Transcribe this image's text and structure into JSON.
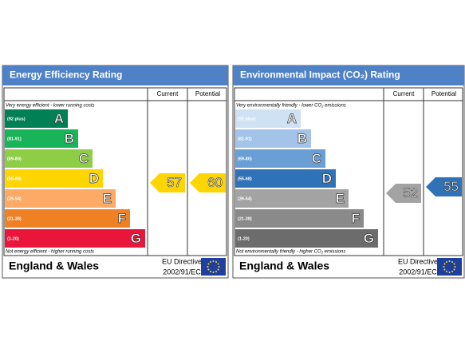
{
  "panels": [
    {
      "title": "Energy Efficiency Rating",
      "columns": [
        "Current",
        "Potential"
      ],
      "top_note": "Very energy efficient - lower running costs",
      "bottom_note": "Not energy efficient - higher running costs",
      "bands": [
        {
          "range": "(92 plus)",
          "letter": "A",
          "color": "#008054"
        },
        {
          "range": "(81-91)",
          "letter": "B",
          "color": "#19b459"
        },
        {
          "range": "(69-80)",
          "letter": "C",
          "color": "#8dce46"
        },
        {
          "range": "(55-68)",
          "letter": "D",
          "color": "#ffd500"
        },
        {
          "range": "(39-54)",
          "letter": "E",
          "color": "#fcaa65"
        },
        {
          "range": "(21-38)",
          "letter": "F",
          "color": "#ef8023"
        },
        {
          "range": "(1-20)",
          "letter": "G",
          "color": "#e9153b"
        }
      ],
      "current": 57,
      "potential": 60,
      "current_color": "#ffd500",
      "potential_color": "#ffd500",
      "region": "England & Wales",
      "directive": "EU Directive",
      "directive_code": "2002/91/EC"
    },
    {
      "title": "Environmental Impact (CO₂) Rating",
      "columns": [
        "Current",
        "Potential"
      ],
      "top_note": "Very environmentally friendly - lower CO₂ emissions",
      "bottom_note": "Not environmentally friendly - higher CO₂ emissions",
      "bands": [
        {
          "range": "(92 plus)",
          "letter": "A",
          "color": "#cfe2f3"
        },
        {
          "range": "(81-91)",
          "letter": "B",
          "color": "#a3c4e8"
        },
        {
          "range": "(69-80)",
          "letter": "C",
          "color": "#6a9fd6"
        },
        {
          "range": "(55-68)",
          "letter": "D",
          "color": "#2f72b8"
        },
        {
          "range": "(39-54)",
          "letter": "E",
          "color": "#a3a3a3"
        },
        {
          "range": "(21-38)",
          "letter": "F",
          "color": "#8a8a8a"
        },
        {
          "range": "(1-20)",
          "letter": "G",
          "color": "#6c6c6c"
        }
      ],
      "current": 52,
      "potential": 55,
      "current_color": "#a3a3a3",
      "potential_color": "#2f72b8",
      "region": "England & Wales",
      "directive": "EU Directive",
      "directive_code": "2002/91/EC"
    }
  ]
}
